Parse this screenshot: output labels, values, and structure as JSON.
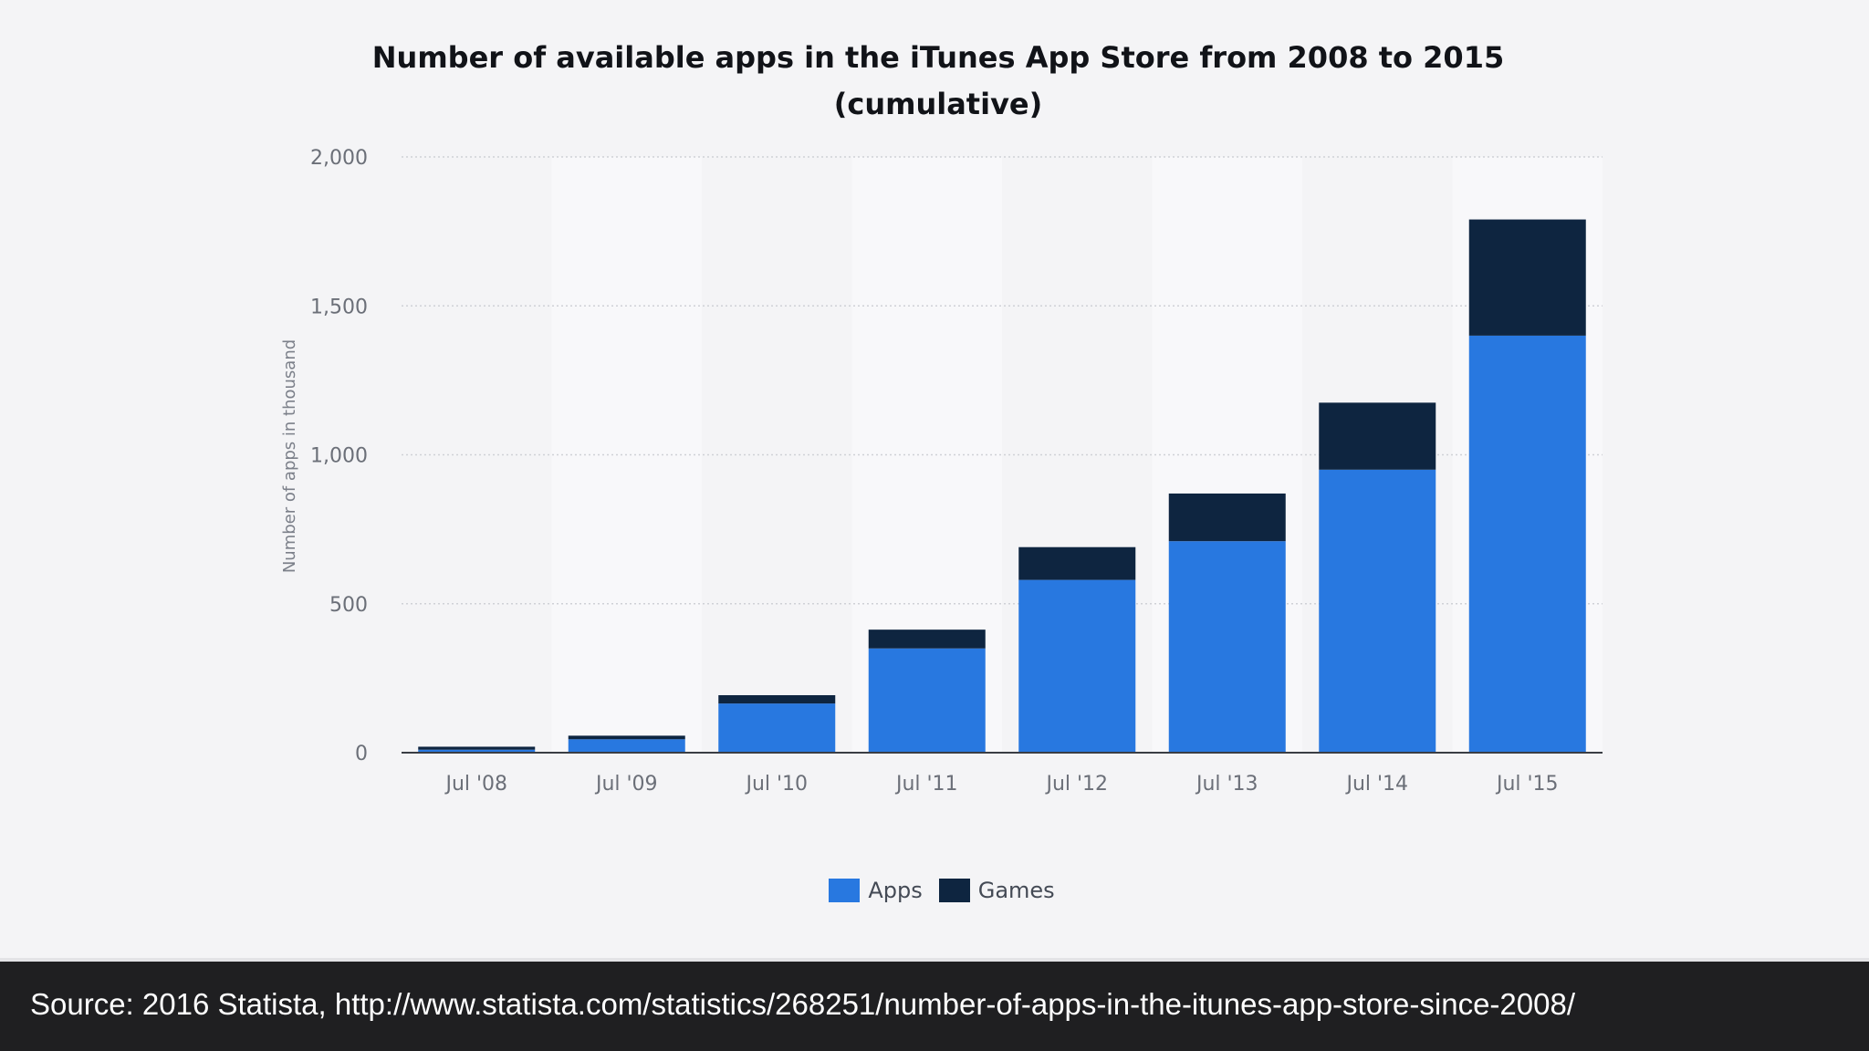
{
  "chart_data": {
    "type": "bar",
    "stacked": true,
    "title_line1": "Number of available apps in the iTunes App Store from 2008 to 2015",
    "title_line2": "(cumulative)",
    "ylabel": "Number of apps in thousand",
    "xlabel": "",
    "categories": [
      "Jul '08",
      "Jul '09",
      "Jul '10",
      "Jul '11",
      "Jul '12",
      "Jul '13",
      "Jul '14",
      "Jul '15"
    ],
    "series": [
      {
        "name": "Apps",
        "color": "#2878e0",
        "values": [
          10,
          45,
          165,
          350,
          580,
          710,
          950,
          1400
        ]
      },
      {
        "name": "Games",
        "color": "#0e2540",
        "values": [
          10,
          12,
          28,
          63,
          110,
          160,
          225,
          390
        ]
      }
    ],
    "ylim": [
      0,
      2000
    ],
    "yticks": [
      0,
      500,
      1000,
      1500,
      2000
    ],
    "ytick_labels": [
      "0",
      "500",
      "1,000",
      "1,500",
      "2,000"
    ],
    "grid": true,
    "legend_position": "bottom-center"
  },
  "footer": {
    "source": "Source: 2016 Statista, http://www.statista.com/statistics/268251/number-of-apps-in-the-itunes-app-store-since-2008/"
  }
}
